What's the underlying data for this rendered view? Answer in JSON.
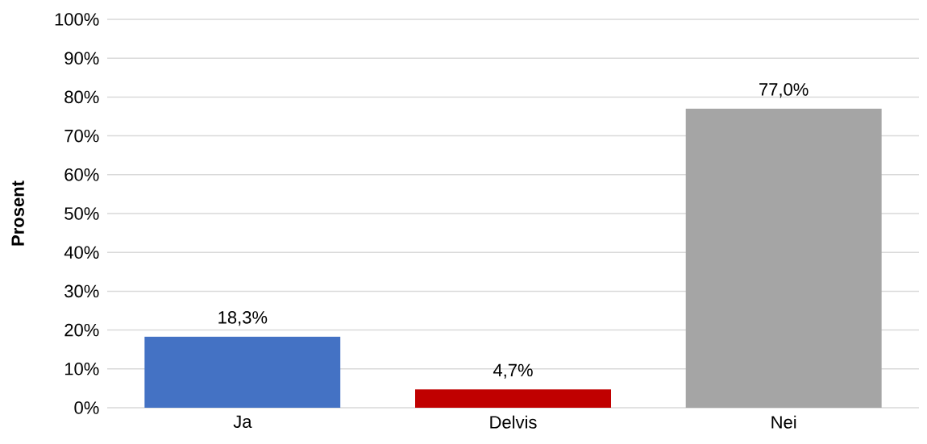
{
  "chart_data": {
    "type": "bar",
    "ylabel": "Prosent",
    "categories": [
      "Ja",
      "Delvis",
      "Nei"
    ],
    "values": [
      18.3,
      4.7,
      77.0
    ],
    "value_labels": [
      "18,3%",
      "4,7%",
      "77,0%"
    ],
    "colors": [
      "#4472c4",
      "#c00000",
      "#a5a5a5"
    ],
    "ylim": [
      0,
      100
    ],
    "yticks": [
      {
        "value": 0,
        "label": "0%"
      },
      {
        "value": 10,
        "label": "10%"
      },
      {
        "value": 20,
        "label": "20%"
      },
      {
        "value": 30,
        "label": "30%"
      },
      {
        "value": 40,
        "label": "40%"
      },
      {
        "value": 50,
        "label": "50%"
      },
      {
        "value": 60,
        "label": "60%"
      },
      {
        "value": 70,
        "label": "70%"
      },
      {
        "value": 80,
        "label": "80%"
      },
      {
        "value": 90,
        "label": "90%"
      },
      {
        "value": 100,
        "label": "100%"
      }
    ],
    "grid": "y"
  }
}
